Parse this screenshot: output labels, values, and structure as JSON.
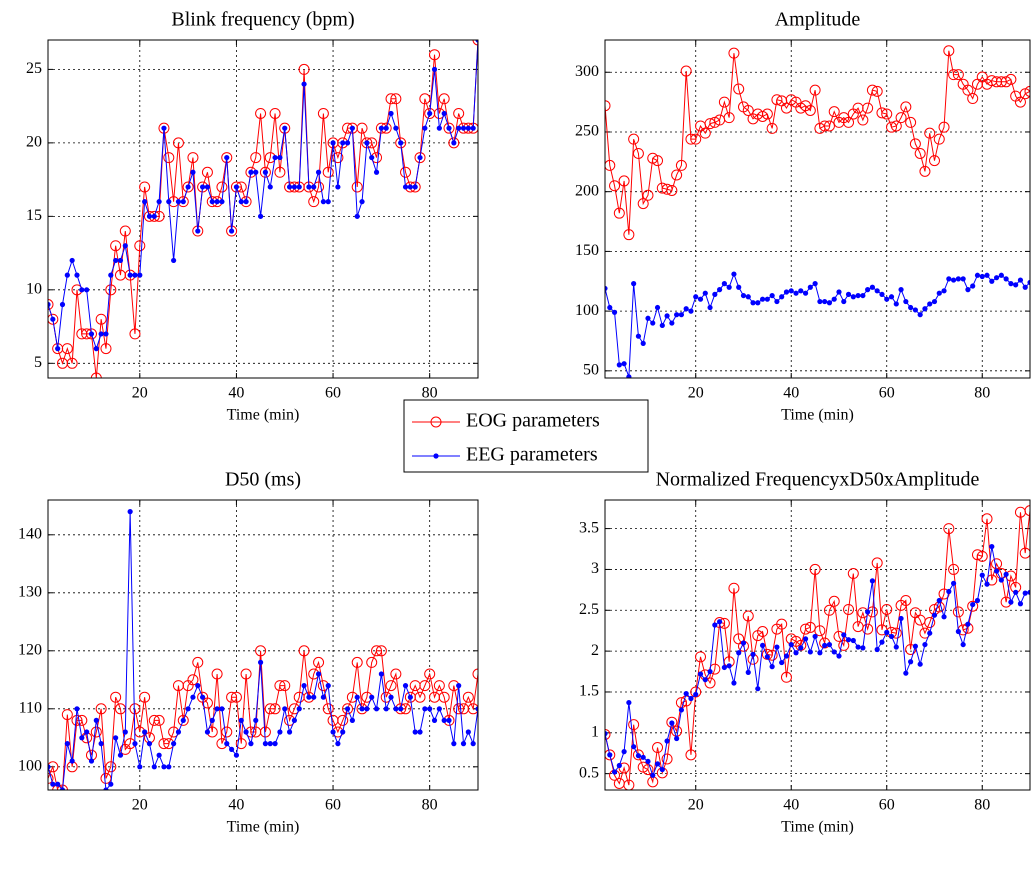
{
  "chart_data": [
    {
      "type": "line",
      "title": "Blink frequency (bpm)",
      "xlabel": "Time (min)",
      "x": [
        1,
        2,
        3,
        4,
        5,
        6,
        7,
        8,
        9,
        10,
        11,
        12,
        13,
        14,
        15,
        16,
        17,
        18,
        19,
        20,
        21,
        22,
        23,
        24,
        25,
        26,
        27,
        28,
        29,
        30,
        31,
        32,
        33,
        34,
        35,
        36,
        37,
        38,
        39,
        40,
        41,
        42,
        43,
        44,
        45,
        46,
        47,
        48,
        49,
        50,
        51,
        52,
        53,
        54,
        55,
        56,
        57,
        58,
        59,
        60,
        61,
        62,
        63,
        64,
        65,
        66,
        67,
        68,
        69,
        70,
        71,
        72,
        73,
        74,
        75,
        76,
        77,
        78,
        79,
        80,
        81,
        82,
        83,
        84,
        85,
        86,
        87,
        88,
        89,
        90
      ],
      "xlim": [
        1,
        90
      ],
      "xticks": [
        20,
        40,
        60,
        80
      ],
      "ylim": [
        4,
        27
      ],
      "yticks": [
        5,
        10,
        15,
        20,
        25
      ],
      "grid": true,
      "series": [
        {
          "name": "EOG parameters",
          "color": "#ff0000",
          "marker": "open-circle",
          "values": [
            9,
            8,
            6,
            5,
            6,
            5,
            10,
            7,
            7,
            7,
            4,
            8,
            6,
            10,
            13,
            11,
            14,
            11,
            7,
            13,
            17,
            15,
            15,
            15,
            21,
            19,
            16,
            20,
            16,
            17,
            19,
            14,
            17,
            18,
            16,
            16,
            17,
            19,
            14,
            17,
            17,
            16,
            18,
            19,
            22,
            18,
            19,
            22,
            18,
            21,
            17,
            17,
            17,
            25,
            17,
            16,
            17,
            22,
            18,
            20,
            19,
            20,
            21,
            21,
            17,
            21,
            20,
            20,
            19,
            21,
            21,
            23,
            23,
            20,
            18,
            17,
            17,
            19,
            23,
            22,
            26,
            22,
            23,
            21,
            20,
            22,
            21,
            21,
            21,
            27
          ]
        },
        {
          "name": "EEG parameters",
          "color": "#0000ff",
          "marker": "dot",
          "values": [
            9,
            8,
            6,
            9,
            11,
            12,
            11,
            10,
            10,
            7,
            6,
            7,
            7,
            11,
            12,
            12,
            13,
            11,
            11,
            11,
            16,
            15,
            15,
            16,
            21,
            16,
            12,
            16,
            16,
            17,
            18,
            14,
            17,
            17,
            16,
            16,
            16,
            19,
            14,
            17,
            16,
            16,
            18,
            18,
            15,
            18,
            17,
            19,
            19,
            21,
            17,
            17,
            17,
            24,
            17,
            17,
            18,
            16,
            16,
            20,
            17,
            20,
            20,
            21,
            15,
            16,
            20,
            19,
            18,
            21,
            21,
            22,
            21,
            20,
            17,
            17,
            17,
            19,
            21,
            22,
            25,
            21,
            22,
            21,
            20,
            21,
            21,
            21,
            21,
            27
          ]
        }
      ]
    },
    {
      "type": "line",
      "title": "Amplitude",
      "xlabel": "Time (min)",
      "x": [
        1,
        2,
        3,
        4,
        5,
        6,
        7,
        8,
        9,
        10,
        11,
        12,
        13,
        14,
        15,
        16,
        17,
        18,
        19,
        20,
        21,
        22,
        23,
        24,
        25,
        26,
        27,
        28,
        29,
        30,
        31,
        32,
        33,
        34,
        35,
        36,
        37,
        38,
        39,
        40,
        41,
        42,
        43,
        44,
        45,
        46,
        47,
        48,
        49,
        50,
        51,
        52,
        53,
        54,
        55,
        56,
        57,
        58,
        59,
        60,
        61,
        62,
        63,
        64,
        65,
        66,
        67,
        68,
        69,
        70,
        71,
        72,
        73,
        74,
        75,
        76,
        77,
        78,
        79,
        80,
        81,
        82,
        83,
        84,
        85,
        86,
        87,
        88,
        89,
        90
      ],
      "xlim": [
        1,
        90
      ],
      "xticks": [
        20,
        40,
        60,
        80
      ],
      "ylim": [
        44,
        327
      ],
      "yticks": [
        50,
        100,
        150,
        200,
        250,
        300
      ],
      "grid": true,
      "series": [
        {
          "color": "#ff0000",
          "marker": "open-circle",
          "values": [
            272,
            222,
            205,
            182,
            209,
            164,
            244,
            232,
            190,
            197,
            228,
            226,
            203,
            202,
            201,
            214,
            222,
            301,
            244,
            244,
            255,
            249,
            257,
            258,
            260,
            275,
            262,
            316,
            286,
            271,
            268,
            261,
            265,
            263,
            265,
            253,
            277,
            276,
            270,
            277,
            275,
            270,
            272,
            268,
            285,
            253,
            255,
            255,
            267,
            258,
            262,
            258,
            265,
            270,
            260,
            270,
            285,
            284,
            266,
            265,
            254,
            255,
            262,
            271,
            258,
            240,
            232,
            217,
            249,
            226,
            244,
            254,
            318,
            298,
            298,
            290,
            285,
            278,
            290,
            296,
            290,
            293,
            292,
            292,
            292,
            294,
            280,
            275,
            282,
            284
          ]
        },
        {
          "color": "#0000ff",
          "marker": "dot",
          "values": [
            119,
            103,
            99,
            55,
            56,
            45,
            123,
            79,
            73,
            94,
            90,
            103,
            88,
            96,
            90,
            97,
            97,
            102,
            100,
            112,
            110,
            115,
            103,
            114,
            118,
            123,
            120,
            131,
            120,
            113,
            112,
            107,
            107,
            110,
            110,
            113,
            108,
            112,
            116,
            117,
            115,
            117,
            115,
            120,
            123,
            108,
            108,
            107,
            110,
            116,
            108,
            114,
            112,
            113,
            113,
            118,
            120,
            117,
            114,
            110,
            112,
            106,
            118,
            108,
            103,
            101,
            97,
            102,
            106,
            108,
            115,
            117,
            127,
            126,
            127,
            127,
            118,
            121,
            130,
            129,
            130,
            125,
            128,
            130,
            127,
            123,
            122,
            126,
            120,
            124
          ]
        }
      ]
    },
    {
      "type": "line",
      "title": "D50 (ms)",
      "xlabel": "Time (min)",
      "x": [
        1,
        2,
        3,
        4,
        5,
        6,
        7,
        8,
        9,
        10,
        11,
        12,
        13,
        14,
        15,
        16,
        17,
        18,
        19,
        20,
        21,
        22,
        23,
        24,
        25,
        26,
        27,
        28,
        29,
        30,
        31,
        32,
        33,
        34,
        35,
        36,
        37,
        38,
        39,
        40,
        41,
        42,
        43,
        44,
        45,
        46,
        47,
        48,
        49,
        50,
        51,
        52,
        53,
        54,
        55,
        56,
        57,
        58,
        59,
        60,
        61,
        62,
        63,
        64,
        65,
        66,
        67,
        68,
        69,
        70,
        71,
        72,
        73,
        74,
        75,
        76,
        77,
        78,
        79,
        80,
        81,
        82,
        83,
        84,
        85,
        86,
        87,
        88,
        89,
        90
      ],
      "xlim": [
        1,
        90
      ],
      "xticks": [
        20,
        40,
        60,
        80
      ],
      "ylim": [
        96,
        146
      ],
      "yticks": [
        100,
        110,
        120,
        130,
        140
      ],
      "grid": true,
      "series": [
        {
          "color": "#ff0000",
          "marker": "open-circle",
          "values": [
            98,
            100,
            96,
            96,
            109,
            100,
            108,
            108,
            105,
            102,
            106,
            110,
            98,
            100,
            112,
            110,
            103,
            104,
            110,
            106,
            112,
            105,
            108,
            108,
            104,
            104,
            106,
            114,
            108,
            114,
            115,
            118,
            112,
            111,
            106,
            116,
            104,
            106,
            112,
            112,
            104,
            116,
            106,
            106,
            120,
            106,
            110,
            110,
            114,
            114,
            108,
            110,
            112,
            120,
            112,
            116,
            118,
            114,
            110,
            108,
            106,
            108,
            110,
            112,
            118,
            110,
            112,
            118,
            120,
            120,
            112,
            114,
            116,
            110,
            110,
            112,
            114,
            112,
            114,
            116,
            112,
            114,
            112,
            108,
            114,
            110,
            110,
            112,
            110,
            116
          ]
        },
        {
          "color": "#0000ff",
          "marker": "dot",
          "values": [
            100,
            97,
            97,
            96,
            104,
            101,
            110,
            105,
            106,
            101,
            108,
            104,
            96,
            97,
            105,
            102,
            106,
            144,
            104,
            100,
            106,
            104,
            100,
            102,
            100,
            100,
            104,
            106,
            108,
            110,
            112,
            114,
            112,
            106,
            108,
            110,
            110,
            104,
            103,
            102,
            108,
            106,
            104,
            108,
            118,
            104,
            104,
            104,
            106,
            110,
            106,
            108,
            110,
            114,
            112,
            112,
            116,
            112,
            114,
            106,
            104,
            106,
            110,
            108,
            112,
            110,
            110,
            112,
            110,
            116,
            110,
            112,
            110,
            110,
            114,
            112,
            106,
            106,
            110,
            110,
            108,
            110,
            108,
            108,
            104,
            114,
            104,
            106,
            104,
            110
          ]
        }
      ]
    },
    {
      "type": "line",
      "title": "Normalized FrequencyxD50xAmplitude",
      "xlabel": "Time (min)",
      "x": [
        1,
        2,
        3,
        4,
        5,
        6,
        7,
        8,
        9,
        10,
        11,
        12,
        13,
        14,
        15,
        16,
        17,
        18,
        19,
        20,
        21,
        22,
        23,
        24,
        25,
        26,
        27,
        28,
        29,
        30,
        31,
        32,
        33,
        34,
        35,
        36,
        37,
        38,
        39,
        40,
        41,
        42,
        43,
        44,
        45,
        46,
        47,
        48,
        49,
        50,
        51,
        52,
        53,
        54,
        55,
        56,
        57,
        58,
        59,
        60,
        61,
        62,
        63,
        64,
        65,
        66,
        67,
        68,
        69,
        70,
        71,
        72,
        73,
        74,
        75,
        76,
        77,
        78,
        79,
        80,
        81,
        82,
        83,
        84,
        85,
        86,
        87,
        88,
        89,
        90
      ],
      "xlim": [
        1,
        90
      ],
      "xticks": [
        20,
        40,
        60,
        80
      ],
      "ylim": [
        0.3,
        3.85
      ],
      "yticks": [
        0.5,
        1,
        1.5,
        2,
        2.5,
        3,
        3.5
      ],
      "grid": true,
      "series": [
        {
          "color": "#ff0000",
          "marker": "open-circle",
          "values": [
            0.98,
            0.73,
            0.48,
            0.38,
            0.57,
            0.36,
            1.1,
            0.73,
            0.58,
            0.55,
            0.4,
            0.82,
            0.51,
            0.68,
            1.13,
            1.02,
            1.37,
            1.39,
            0.73,
            1.5,
            1.93,
            1.71,
            1.61,
            1.78,
            2.35,
            2.34,
            1.87,
            2.77,
            2.15,
            2.06,
            2.43,
            1.9,
            2.19,
            2.24,
            1.96,
            1.95,
            2.27,
            2.33,
            1.68,
            2.15,
            2.12,
            2.07,
            2.27,
            2.29,
            3.0,
            2.25,
            2.1,
            2.5,
            2.61,
            2.18,
            2.07,
            2.51,
            2.95,
            2.3,
            2.47,
            2.27,
            2.48,
            3.08,
            2.26,
            2.51,
            2.23,
            2.22,
            2.56,
            2.62,
            2.02,
            2.47,
            2.38,
            2.22,
            2.35,
            2.51,
            2.54,
            2.7,
            3.5,
            3.0,
            2.48,
            2.26,
            2.28,
            2.55,
            3.18,
            3.16,
            3.62,
            2.87,
            3.07,
            2.95,
            2.6,
            2.92,
            2.78,
            3.7,
            3.2,
            3.72
          ]
        },
        {
          "color": "#0000ff",
          "marker": "dot",
          "values": [
            0.99,
            0.73,
            0.52,
            0.6,
            0.77,
            1.37,
            0.83,
            0.72,
            0.7,
            0.65,
            0.48,
            0.62,
            0.55,
            0.9,
            1.12,
            0.93,
            1.28,
            1.48,
            1.42,
            1.47,
            1.72,
            1.65,
            1.75,
            2.32,
            2.36,
            1.8,
            1.82,
            1.61,
            1.98,
            2.1,
            1.74,
            1.96,
            1.54,
            2.07,
            1.93,
            1.81,
            2.05,
            1.86,
            1.94,
            2.08,
            1.98,
            2.04,
            2.15,
            1.99,
            2.18,
            1.98,
            2.07,
            2.08,
            1.99,
            1.94,
            2.2,
            2.14,
            2.13,
            2.05,
            2.04,
            2.48,
            2.86,
            2.02,
            2.11,
            2.23,
            2.18,
            2.05,
            2.4,
            1.73,
            1.87,
            2.06,
            1.84,
            2.08,
            2.22,
            2.44,
            2.62,
            2.42,
            2.73,
            2.83,
            2.24,
            2.08,
            2.33,
            2.57,
            2.62,
            2.93,
            2.82,
            3.28,
            2.98,
            2.87,
            2.94,
            2.6,
            2.72,
            2.58,
            2.71,
            2.72
          ]
        }
      ]
    }
  ]
}
